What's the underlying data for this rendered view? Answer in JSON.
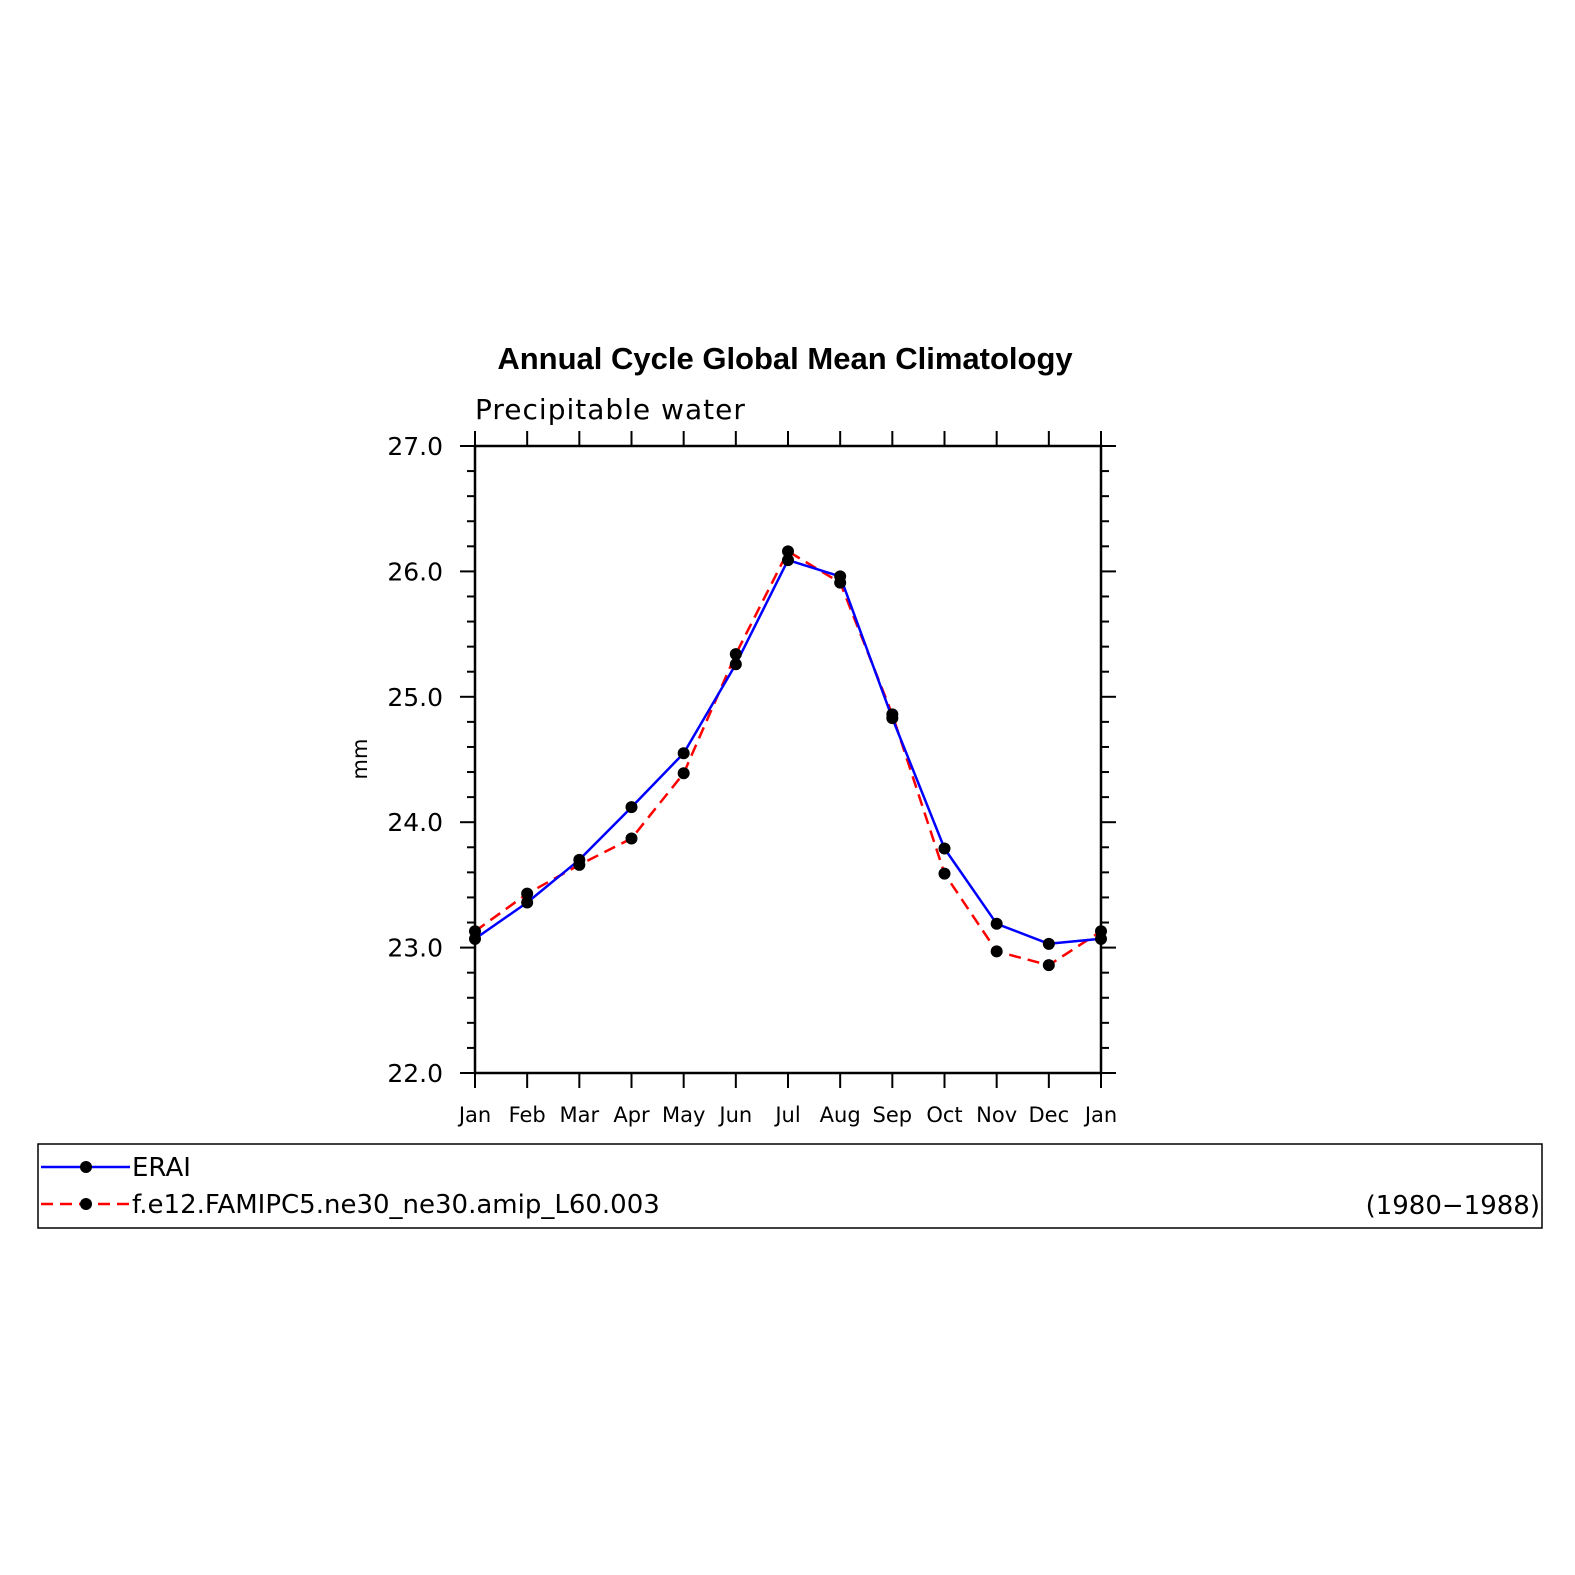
{
  "chart_data": {
    "type": "line",
    "title": "Annual Cycle Global Mean Climatology",
    "subtitle": "Precipitable water",
    "ylabel": "mm",
    "xlabel": "",
    "ylim": [
      22.0,
      27.0
    ],
    "yticks": [
      "22.0",
      "23.0",
      "24.0",
      "25.0",
      "26.0",
      "27.0"
    ],
    "categories": [
      "Jan",
      "Feb",
      "Mar",
      "Apr",
      "May",
      "Jun",
      "Jul",
      "Aug",
      "Sep",
      "Oct",
      "Nov",
      "Dec",
      "Jan"
    ],
    "series": [
      {
        "name": "ERAI",
        "color": "#0000ff",
        "dash": "solid",
        "values": [
          23.07,
          23.36,
          23.7,
          24.12,
          24.55,
          25.26,
          26.09,
          25.96,
          24.83,
          23.79,
          23.19,
          23.03,
          23.07
        ]
      },
      {
        "name": "f.e12.FAMIPC5.ne30_ne30.amip_L60.003",
        "color": "#ff0000",
        "dash": "dashed",
        "values": [
          23.13,
          23.43,
          23.66,
          23.87,
          24.39,
          25.34,
          26.16,
          25.91,
          24.86,
          23.59,
          22.97,
          22.86,
          23.13
        ]
      }
    ],
    "period": "(1980−1988)",
    "grid": false,
    "legend_position": "bottom"
  }
}
